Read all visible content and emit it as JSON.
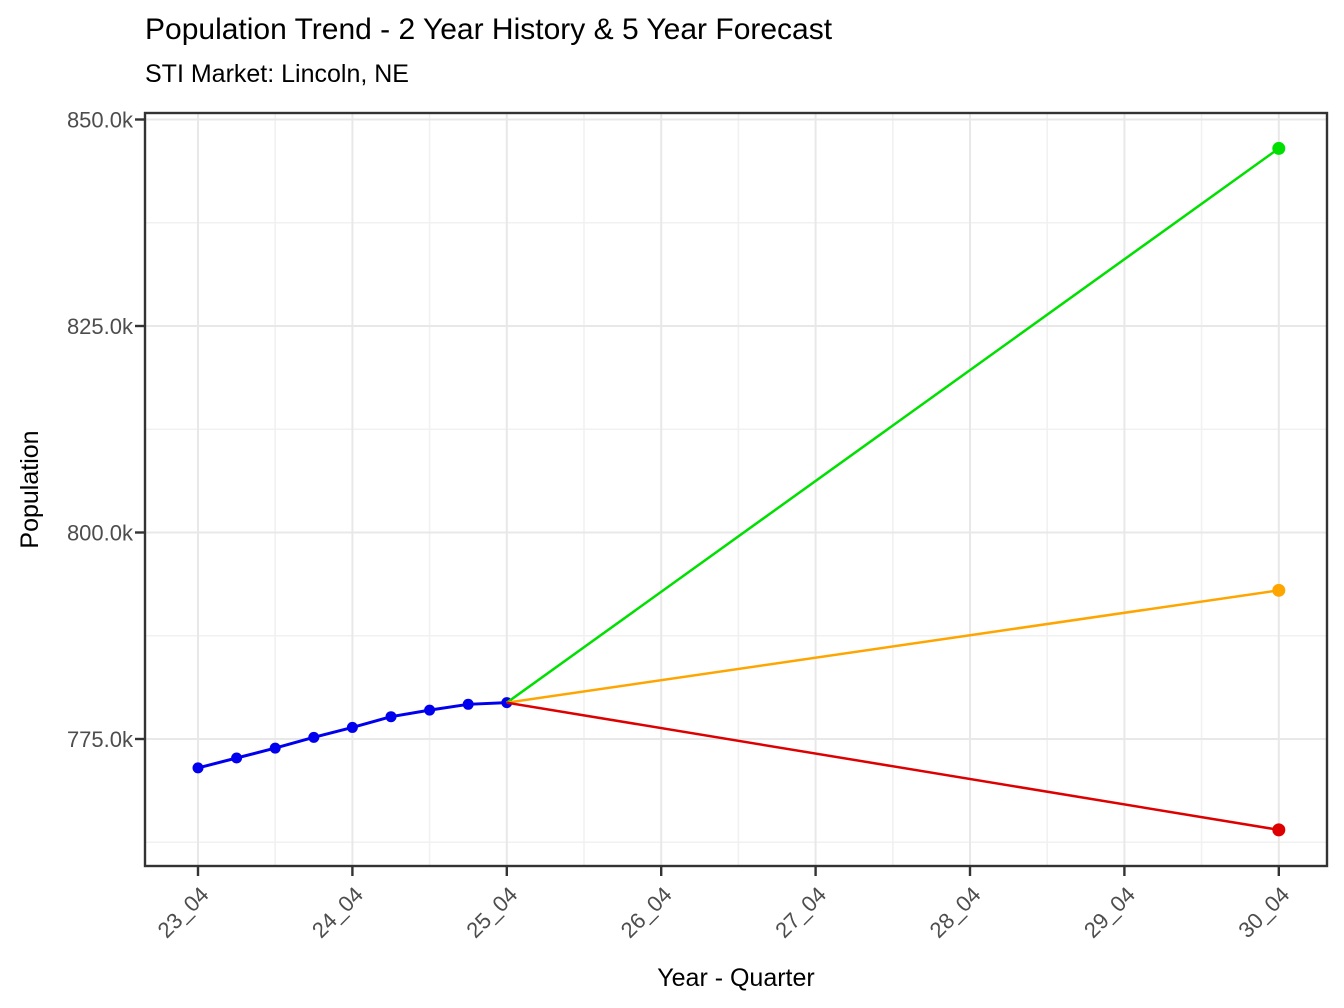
{
  "chart_data": {
    "type": "line",
    "title": "Population Trend - 2 Year History & 5 Year Forecast",
    "subtitle": "STI Market: Lincoln, NE",
    "xlabel": "Year - Quarter",
    "ylabel": "Population",
    "x_tick_labels": [
      "23_04",
      "24_04",
      "25_04",
      "26_04",
      "27_04",
      "28_04",
      "29_04",
      "30_04"
    ],
    "x_tick_quarters": [
      0,
      4,
      8,
      12,
      16,
      20,
      24,
      28
    ],
    "x_minor_quarters": [
      2,
      6,
      10,
      14,
      18,
      22,
      26
    ],
    "y_ticks": [
      775000,
      800000,
      825000,
      850000
    ],
    "y_tick_labels": [
      "775.0k",
      "800.0k",
      "825.0k",
      "850.0k"
    ],
    "y_minor_ticks": [
      762500,
      787500,
      812500,
      837500
    ],
    "ylim": [
      760000,
      851000
    ],
    "grid": "major-and-minor",
    "legend": "none",
    "series": [
      {
        "name": "history",
        "color": "#0000EE",
        "line_width": 3,
        "markers": "all",
        "marker_radius": 5.5,
        "x_labels": [
          "23_04",
          "24_01",
          "24_02",
          "24_03",
          "24_04",
          "25_01",
          "25_02",
          "25_03",
          "25_04"
        ],
        "x_quarters": [
          0,
          1,
          2,
          3,
          4,
          5,
          6,
          7,
          8
        ],
        "values": [
          771500,
          772700,
          773900,
          775200,
          776400,
          777700,
          778500,
          779200,
          779400
        ]
      },
      {
        "name": "forecast-high",
        "color": "#00E000",
        "line_width": 2.5,
        "markers": "last",
        "marker_radius": 6.5,
        "x_labels": [
          "25_04",
          "30_04"
        ],
        "x_quarters": [
          8,
          28
        ],
        "values": [
          779400,
          846500
        ]
      },
      {
        "name": "forecast-mid",
        "color": "#FFA500",
        "line_width": 2.5,
        "markers": "last",
        "marker_radius": 6.5,
        "x_labels": [
          "25_04",
          "30_04"
        ],
        "x_quarters": [
          8,
          28
        ],
        "values": [
          779400,
          793000
        ]
      },
      {
        "name": "forecast-low",
        "color": "#DE0000",
        "line_width": 2.5,
        "markers": "last",
        "marker_radius": 6.5,
        "x_labels": [
          "25_04",
          "30_04"
        ],
        "x_quarters": [
          8,
          28
        ],
        "values": [
          779400,
          764000
        ]
      }
    ],
    "style": {
      "panel_border_color": "#333333",
      "tick_color": "#333333",
      "major_grid_color": "#E8E8E8",
      "minor_grid_color": "#F1F1F1",
      "tick_label_color": "#4D4D4D"
    }
  }
}
